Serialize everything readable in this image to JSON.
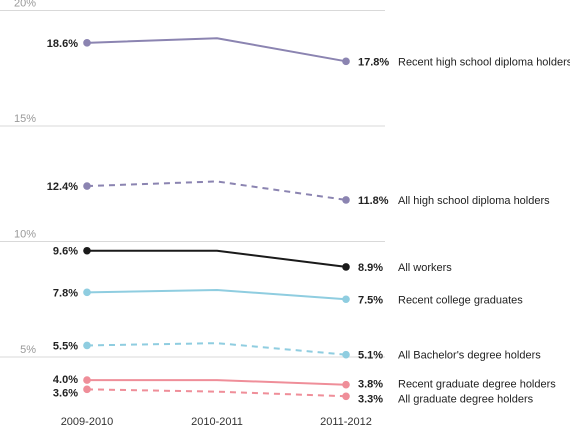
{
  "chart_data": {
    "type": "line",
    "x": [
      "2009-2010",
      "2010-2011",
      "2011-2012"
    ],
    "ylim": [
      4,
      20
    ],
    "yticks": [
      {
        "value": 20,
        "label": "20%"
      },
      {
        "value": 15,
        "label": "15%"
      },
      {
        "value": 10,
        "label": "10%"
      },
      {
        "value": 5,
        "label": "5%"
      }
    ],
    "grid": "horizontal",
    "series": [
      {
        "name": "Recent high school diploma holders",
        "values": [
          18.6,
          18.8,
          17.8
        ],
        "start_label": "18.6%",
        "end_label": "17.8%",
        "color": "#8b84b1",
        "dashed": false
      },
      {
        "name": "All high school diploma holders",
        "values": [
          12.4,
          12.6,
          11.8
        ],
        "start_label": "12.4%",
        "end_label": "11.8%",
        "color": "#8b84b1",
        "dashed": true
      },
      {
        "name": "All workers",
        "values": [
          9.6,
          9.6,
          8.9
        ],
        "start_label": "9.6%",
        "end_label": "8.9%",
        "color": "#1a1a1a",
        "dashed": false
      },
      {
        "name": "Recent college graduates",
        "values": [
          7.8,
          7.9,
          7.5
        ],
        "start_label": "7.8%",
        "end_label": "7.5%",
        "color": "#8fcde0",
        "dashed": false
      },
      {
        "name": "All Bachelor's degree holders",
        "values": [
          5.5,
          5.6,
          5.1
        ],
        "start_label": "5.5%",
        "end_label": "5.1%",
        "color": "#8fcde0",
        "dashed": true
      },
      {
        "name": "Recent graduate degree holders",
        "values": [
          4.0,
          4.0,
          3.8
        ],
        "start_label": "4.0%",
        "end_label": "3.8%",
        "color": "#ef8e99",
        "dashed": false
      },
      {
        "name": "All graduate degree holders",
        "values": [
          3.6,
          3.5,
          3.3
        ],
        "start_label": "3.6%",
        "end_label": "3.3%",
        "color": "#ef8e99",
        "dashed": true
      }
    ]
  }
}
